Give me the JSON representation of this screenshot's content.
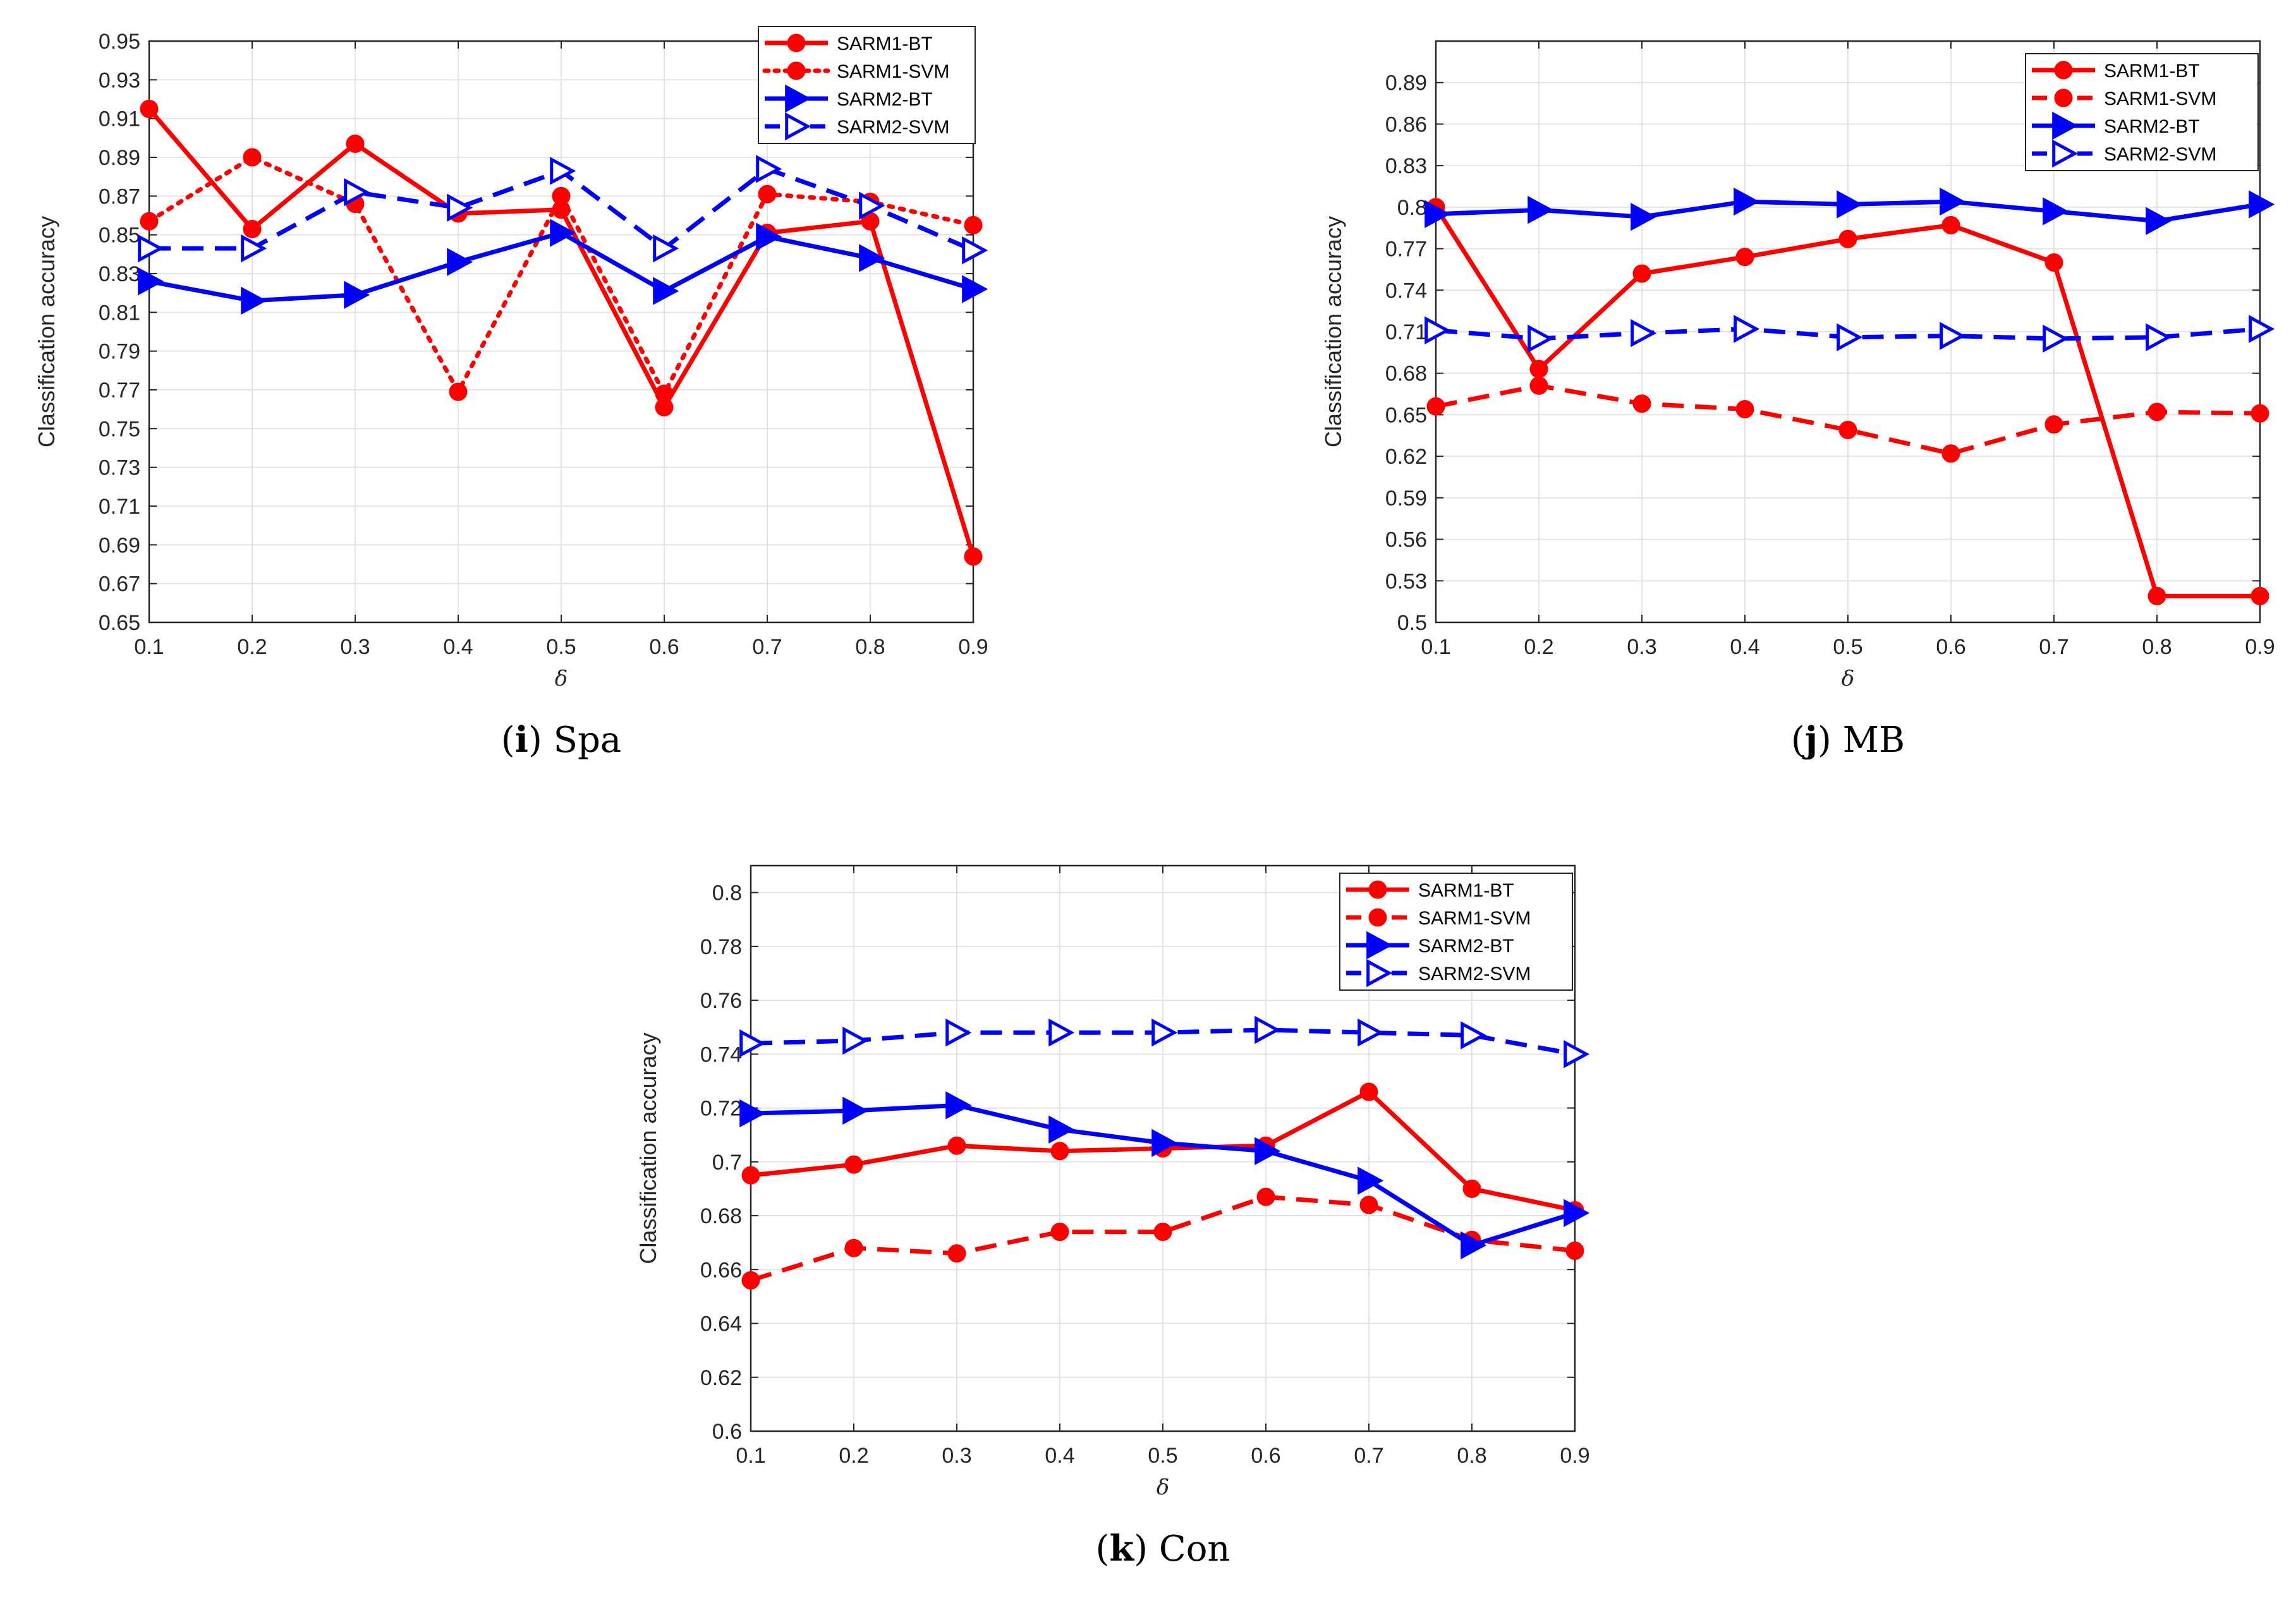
{
  "chart_data": [
    {
      "type": "line",
      "caption": {
        "letter": "i",
        "name": "Spa"
      },
      "xlabel": "δ",
      "ylabel": "Classification accuracy",
      "x": [
        0.1,
        0.2,
        0.3,
        0.4,
        0.5,
        0.6,
        0.7,
        0.8,
        0.9
      ],
      "xlim": [
        0.1,
        0.9
      ],
      "ylim": [
        0.65,
        0.95
      ],
      "x_ticks": [
        "0.1",
        "0.2",
        "0.3",
        "0.4",
        "0.5",
        "0.6",
        "0.7",
        "0.8",
        "0.9"
      ],
      "y_ticks": [
        "0.65",
        "0.67",
        "0.69",
        "0.71",
        "0.73",
        "0.75",
        "0.77",
        "0.79",
        "0.81",
        "0.83",
        "0.85",
        "0.87",
        "0.89",
        "0.91",
        "0.93",
        "0.95"
      ],
      "grid": true,
      "legend_position": "top-right",
      "series": [
        {
          "name": "SARM1-BT",
          "color": "#ff0000",
          "dash": "solid",
          "marker": "circle",
          "values": [
            0.915,
            0.853,
            0.897,
            0.861,
            0.863,
            0.761,
            0.851,
            0.857,
            0.684
          ]
        },
        {
          "name": "SARM1-SVM",
          "color": "#ff0000",
          "dash": "dotted",
          "marker": "circle",
          "values": [
            0.857,
            0.89,
            0.866,
            0.769,
            0.87,
            0.768,
            0.871,
            0.867,
            0.855
          ]
        },
        {
          "name": "SARM2-BT",
          "color": "#0000ff",
          "dash": "solid",
          "marker": "triangle",
          "values": [
            0.826,
            0.816,
            0.819,
            0.836,
            0.851,
            0.821,
            0.849,
            0.838,
            0.822
          ]
        },
        {
          "name": "SARM2-SVM",
          "color": "#0000ff",
          "dash": "dashed",
          "marker": "triangle",
          "values": [
            0.843,
            0.843,
            0.872,
            0.864,
            0.883,
            0.843,
            0.884,
            0.865,
            0.842
          ]
        }
      ]
    },
    {
      "type": "line",
      "caption": {
        "letter": "j",
        "name": "MB"
      },
      "xlabel": "δ",
      "ylabel": "Classification accuracy",
      "x": [
        0.1,
        0.2,
        0.3,
        0.4,
        0.5,
        0.6,
        0.7,
        0.8,
        0.9
      ],
      "xlim": [
        0.1,
        0.9
      ],
      "ylim": [
        0.5,
        0.92
      ],
      "x_ticks": [
        "0.1",
        "0.2",
        "0.3",
        "0.4",
        "0.5",
        "0.6",
        "0.7",
        "0.8",
        "0.9"
      ],
      "y_ticks": [
        "0.5",
        "0.53",
        "0.56",
        "0.59",
        "0.62",
        "0.65",
        "0.68",
        "0.71",
        "0.74",
        "0.77",
        "0.8",
        "0.83",
        "0.86",
        "0.89"
      ],
      "grid": true,
      "legend_position": "top-right",
      "series": [
        {
          "name": "SARM1-BT",
          "color": "#ff0000",
          "dash": "solid",
          "marker": "circle",
          "values": [
            0.8,
            0.683,
            0.752,
            0.764,
            0.777,
            0.787,
            0.76,
            0.519,
            0.519
          ]
        },
        {
          "name": "SARM1-SVM",
          "color": "#ff0000",
          "dash": "dashed",
          "marker": "circle",
          "values": [
            0.656,
            0.671,
            0.658,
            0.654,
            0.639,
            0.622,
            0.643,
            0.652,
            0.651
          ]
        },
        {
          "name": "SARM2-BT",
          "color": "#0000ff",
          "dash": "solid",
          "marker": "triangle",
          "values": [
            0.795,
            0.798,
            0.793,
            0.804,
            0.802,
            0.804,
            0.797,
            0.79,
            0.802
          ]
        },
        {
          "name": "SARM2-SVM",
          "color": "#0000ff",
          "dash": "dashed",
          "marker": "triangle",
          "values": [
            0.711,
            0.705,
            0.709,
            0.712,
            0.706,
            0.707,
            0.705,
            0.706,
            0.712
          ]
        }
      ]
    },
    {
      "type": "line",
      "caption": {
        "letter": "k",
        "name": "Con"
      },
      "xlabel": "δ",
      "ylabel": "Classification accuracy",
      "x": [
        0.1,
        0.2,
        0.3,
        0.4,
        0.5,
        0.6,
        0.7,
        0.8,
        0.9
      ],
      "xlim": [
        0.1,
        0.9
      ],
      "ylim": [
        0.6,
        0.81
      ],
      "x_ticks": [
        "0.1",
        "0.2",
        "0.3",
        "0.4",
        "0.5",
        "0.6",
        "0.7",
        "0.8",
        "0.9"
      ],
      "y_ticks": [
        "0.6",
        "0.62",
        "0.64",
        "0.66",
        "0.68",
        "0.7",
        "0.72",
        "0.74",
        "0.76",
        "0.78",
        "0.8"
      ],
      "grid": true,
      "legend_position": "top-right",
      "series": [
        {
          "name": "SARM1-BT",
          "color": "#ff0000",
          "dash": "solid",
          "marker": "circle",
          "values": [
            0.695,
            0.699,
            0.706,
            0.704,
            0.705,
            0.706,
            0.726,
            0.69,
            0.682
          ]
        },
        {
          "name": "SARM1-SVM",
          "color": "#ff0000",
          "dash": "dashed",
          "marker": "circle",
          "values": [
            0.656,
            0.668,
            0.666,
            0.674,
            0.674,
            0.687,
            0.684,
            0.671,
            0.667
          ]
        },
        {
          "name": "SARM2-BT",
          "color": "#0000ff",
          "dash": "solid",
          "marker": "triangle",
          "values": [
            0.718,
            0.719,
            0.721,
            0.712,
            0.707,
            0.704,
            0.693,
            0.669,
            0.681
          ]
        },
        {
          "name": "SARM2-SVM",
          "color": "#0000ff",
          "dash": "dashed",
          "marker": "triangle",
          "values": [
            0.744,
            0.745,
            0.748,
            0.748,
            0.748,
            0.749,
            0.748,
            0.747,
            0.74
          ]
        }
      ]
    }
  ]
}
